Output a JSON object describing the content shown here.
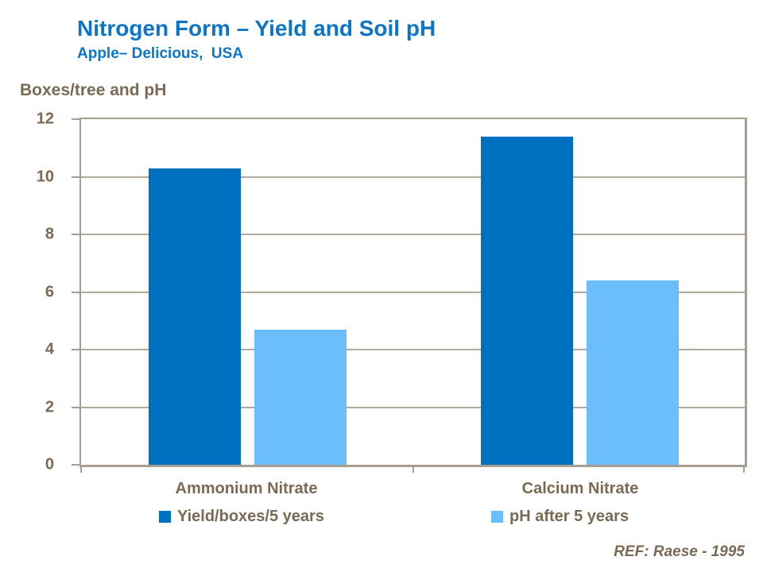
{
  "header": {
    "title": "Nitrogen Form – Yield and Soil pH",
    "subtitle": "Apple– Delicious,  USA"
  },
  "chart_data": {
    "type": "bar",
    "title": "Nitrogen Form – Yield and Soil pH",
    "subtitle": "Apple– Delicious, USA",
    "axis_title": "Boxes/tree and pH",
    "categories": [
      "Ammonium Nitrate",
      "Calcium Nitrate"
    ],
    "series": [
      {
        "name": "Yield/boxes/5 years",
        "color": "#0070c0",
        "values": [
          10.3,
          11.4
        ]
      },
      {
        "name": "pH after 5 years",
        "color": "#6cbefa",
        "values": [
          4.7,
          6.4
        ]
      }
    ],
    "ylim": [
      0,
      12
    ],
    "y_ticks": [
      0,
      2,
      4,
      6,
      8,
      10,
      12
    ],
    "grid": true,
    "legend_position": "bottom"
  },
  "footer": {
    "reference": "REF: Raese - 1995"
  },
  "colors": {
    "title_blue": "#0d75c8",
    "text_brown": "#7a6a54",
    "gridline": "#b3a89c",
    "axis_border": "#a79d91",
    "series_dark_blue": "#0070c0",
    "series_light_blue": "#6cbefa",
    "background": "#ffffff"
  }
}
